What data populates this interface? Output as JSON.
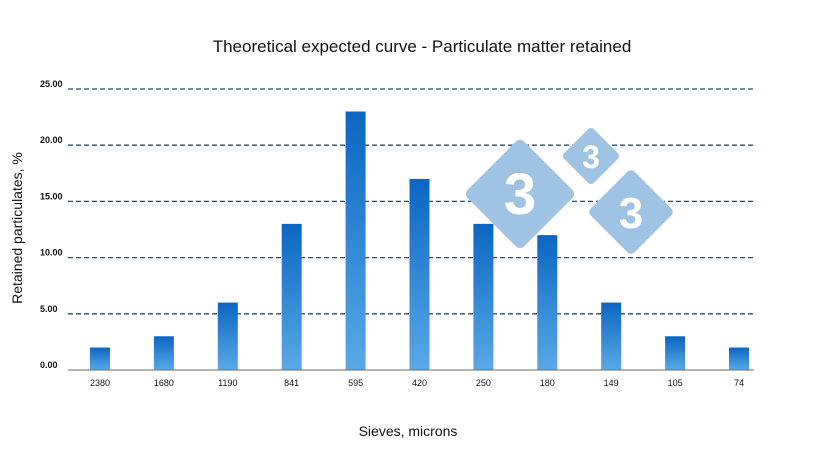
{
  "chart_data": {
    "type": "bar",
    "title": "Theoretical expected curve - Particulate matter retained",
    "xlabel": "Sieves, microns",
    "ylabel": "Retained particulates, %",
    "categories": [
      "2380",
      "1680",
      "1190",
      "841",
      "595",
      "420",
      "250",
      "180",
      "149",
      "105",
      "74"
    ],
    "values": [
      2,
      3,
      6,
      13,
      23,
      17,
      13,
      12,
      6,
      3,
      2
    ],
    "ylim": [
      0,
      25
    ],
    "yticks": [
      "0.00",
      "5.00",
      "10.00",
      "15.00",
      "20.00",
      "25.00"
    ],
    "grid": true,
    "colors": {
      "bar_top": "#0b66c2",
      "bar_bottom": "#5aa9e6",
      "grid": "#1f4e79"
    }
  },
  "watermark": {
    "digits": [
      "3",
      "3",
      "3"
    ],
    "color": "#9fc3e3"
  }
}
